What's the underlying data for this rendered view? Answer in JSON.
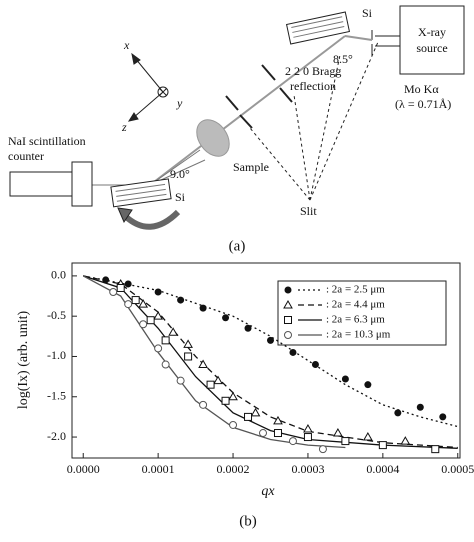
{
  "diagram": {
    "axis_x": "x",
    "axis_y": "y",
    "axis_z": "z",
    "si_top": "Si",
    "angle_top": "8.5°",
    "source": [
      "X-ray",
      "source"
    ],
    "bragg": [
      "2 2 0 Bragg",
      "reflection"
    ],
    "mo": "Mo Kα",
    "lambda": "(λ = 0.71Å)",
    "detector": [
      "NaI scintillation",
      "counter"
    ],
    "sample": "Sample",
    "slit": "Slit",
    "angle_bottom": "9.0°",
    "si_bottom": "Si",
    "panel_label": "(a)"
  },
  "chart_data": {
    "type": "scatter",
    "xlabel": "qx",
    "ylabel": "log(Ix) (arb. unit)",
    "panel_label": "(b)",
    "xlim": [
      -1.5e-05,
      0.000503
    ],
    "ylim": [
      -2.26,
      0.16
    ],
    "xticks": [
      {
        "value": 0,
        "label": "0.0000"
      },
      0.0001,
      0.0002,
      0.0003,
      0.0004,
      0.0005
    ],
    "yticks": [
      {
        "value": 0,
        "label": "0.0"
      },
      -0.5,
      {
        "value": -1,
        "label": "-1.0"
      },
      -1.5,
      {
        "value": -2,
        "label": "-2.0"
      }
    ],
    "series": [
      {
        "name": ": 2a = 2.5 μm",
        "marker": "filled-circle",
        "dash": "2,3",
        "color": "#111",
        "x": [
          3e-05,
          6e-05,
          0.0001,
          0.00013,
          0.00016,
          0.00019,
          0.00022,
          0.00025,
          0.00028,
          0.00031,
          0.00035,
          0.00038,
          0.00042,
          0.00045,
          0.00048
        ],
        "values": [
          -0.05,
          -0.1,
          -0.2,
          -0.3,
          -0.4,
          -0.52,
          -0.65,
          -0.8,
          -0.95,
          -1.1,
          -1.28,
          -1.35,
          -1.7,
          -1.63,
          -1.75
        ],
        "fit": {
          "x": [
            0,
            0.0001,
            0.0002,
            0.00025,
            0.0003,
            0.00035,
            0.0004,
            0.00045,
            0.0005
          ],
          "values": [
            0,
            -0.18,
            -0.5,
            -0.75,
            -1.05,
            -1.35,
            -1.6,
            -1.75,
            -1.87
          ]
        }
      },
      {
        "name": ": 2a = 4.4 μm",
        "marker": "triangle",
        "dash": "6,4",
        "color": "#111",
        "x": [
          5e-05,
          8e-05,
          0.0001,
          0.00012,
          0.00014,
          0.00016,
          0.00018,
          0.0002,
          0.00023,
          0.00026,
          0.0003,
          0.00034,
          0.00038,
          0.00043
        ],
        "values": [
          -0.1,
          -0.35,
          -0.5,
          -0.7,
          -0.85,
          -1.1,
          -1.3,
          -1.5,
          -1.7,
          -1.8,
          -1.9,
          -1.95,
          -2.0,
          -2.05
        ],
        "fit": {
          "x": [
            0,
            5e-05,
            0.0001,
            0.00015,
            0.0002,
            0.00025,
            0.0003,
            0.0004,
            0.0005
          ],
          "values": [
            0,
            -0.1,
            -0.45,
            -1.0,
            -1.45,
            -1.75,
            -1.93,
            -2.07,
            -2.13
          ]
        }
      },
      {
        "name": ": 2a = 6.3 μm",
        "marker": "square",
        "dash": "",
        "color": "#111",
        "x": [
          5e-05,
          7e-05,
          9e-05,
          0.00011,
          0.00014,
          0.00017,
          0.00019,
          0.00022,
          0.00026,
          0.0003,
          0.00035,
          0.0004,
          0.00047
        ],
        "values": [
          -0.15,
          -0.3,
          -0.55,
          -0.8,
          -1.0,
          -1.35,
          -1.55,
          -1.75,
          -1.95,
          -2.0,
          -2.05,
          -2.1,
          -2.15
        ],
        "fit": {
          "x": [
            0,
            5e-05,
            0.0001,
            0.00015,
            0.0002,
            0.00025,
            0.0003,
            0.0004,
            0.0005
          ],
          "values": [
            0,
            -0.15,
            -0.65,
            -1.25,
            -1.7,
            -1.92,
            -2.03,
            -2.1,
            -2.14
          ]
        }
      },
      {
        "name": ": 2a = 10.3 μm",
        "marker": "open-circle",
        "dash": "",
        "color": "#555",
        "x": [
          4e-05,
          6e-05,
          8e-05,
          0.0001,
          0.00011,
          0.00013,
          0.00016,
          0.0002,
          0.00024,
          0.00028,
          0.00032
        ],
        "values": [
          -0.2,
          -0.35,
          -0.6,
          -0.9,
          -1.1,
          -1.3,
          -1.6,
          -1.85,
          -1.95,
          -2.05,
          -2.15
        ],
        "fit": {
          "x": [
            0,
            5e-05,
            0.0001,
            0.00015,
            0.0002,
            0.00025,
            0.0003,
            0.00035
          ],
          "values": [
            0,
            -0.25,
            -0.95,
            -1.55,
            -1.88,
            -2.03,
            -2.1,
            -2.13
          ]
        }
      }
    ]
  }
}
